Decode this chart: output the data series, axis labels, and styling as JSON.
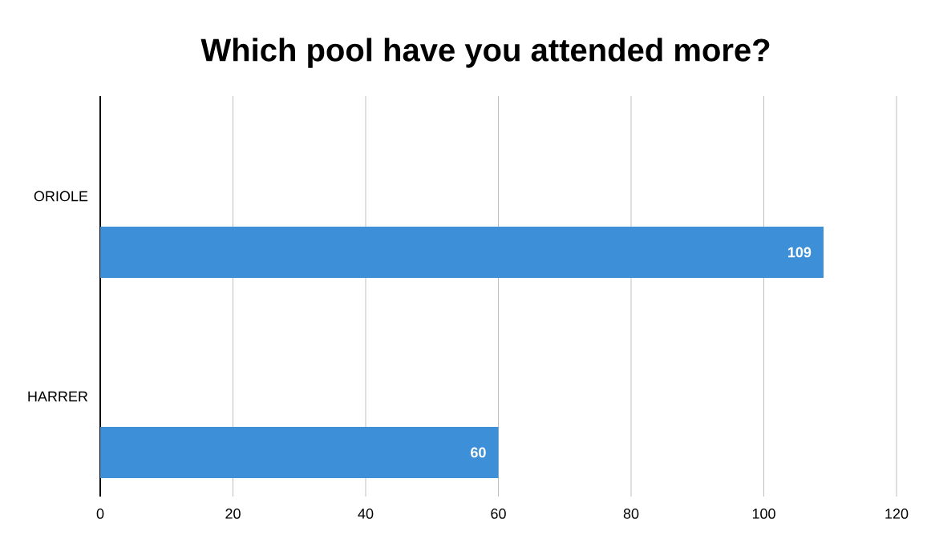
{
  "chart_data": {
    "type": "bar",
    "orientation": "horizontal",
    "title": "Which pool have you attended more?",
    "categories": [
      "ORIOLE",
      "HARRER"
    ],
    "values": [
      109,
      60
    ],
    "color": "#3d8fd8",
    "xlim": [
      0,
      120
    ],
    "xticks": [
      0,
      20,
      40,
      60,
      80,
      100,
      120
    ],
    "grid": "x",
    "data_labels": true
  }
}
